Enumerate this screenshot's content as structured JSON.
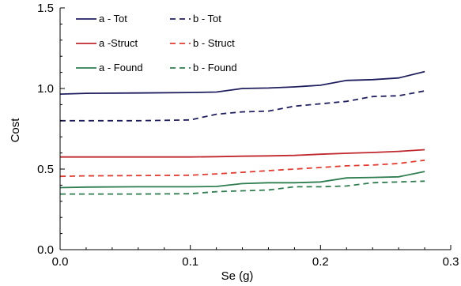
{
  "chart_data": {
    "type": "line",
    "title": "",
    "xlabel": "Se (g)",
    "ylabel": "Cost",
    "xlim": [
      0.0,
      0.3
    ],
    "ylim": [
      0.0,
      1.5
    ],
    "xticks": [
      "0.0",
      "0.1",
      "0.2",
      "0.3"
    ],
    "yticks": [
      "0.0",
      "0.5",
      "1.0",
      "1.5"
    ],
    "grid": false,
    "legend_position": "top-left",
    "x": [
      0.0,
      0.02,
      0.06,
      0.1,
      0.12,
      0.14,
      0.16,
      0.18,
      0.2,
      0.22,
      0.24,
      0.26,
      0.28
    ],
    "series": [
      {
        "name": "a - Tot",
        "color": "#1f1f5f",
        "dash": "solid",
        "values": [
          0.965,
          0.97,
          0.972,
          0.975,
          0.978,
          1.0,
          1.003,
          1.01,
          1.02,
          1.05,
          1.055,
          1.065,
          1.105
        ]
      },
      {
        "name": "b - Tot",
        "color": "#1f1f5f",
        "dash": "dashed",
        "values": [
          0.8,
          0.8,
          0.8,
          0.805,
          0.84,
          0.855,
          0.86,
          0.89,
          0.905,
          0.92,
          0.95,
          0.955,
          0.985
        ]
      },
      {
        "name": "a -Struct",
        "color": "#c0282d",
        "dash": "solid",
        "values": [
          0.575,
          0.575,
          0.575,
          0.575,
          0.577,
          0.58,
          0.582,
          0.585,
          0.592,
          0.598,
          0.603,
          0.61,
          0.62
        ]
      },
      {
        "name": "b - Struct",
        "color": "#e53a2f",
        "dash": "dashed",
        "values": [
          0.455,
          0.458,
          0.46,
          0.462,
          0.47,
          0.48,
          0.49,
          0.5,
          0.51,
          0.52,
          0.525,
          0.535,
          0.555
        ]
      },
      {
        "name": "a - Found",
        "color": "#2e7d4f",
        "dash": "solid",
        "values": [
          0.385,
          0.388,
          0.39,
          0.39,
          0.392,
          0.41,
          0.415,
          0.415,
          0.42,
          0.445,
          0.448,
          0.452,
          0.485
        ]
      },
      {
        "name": "b - Found",
        "color": "#2e7d4f",
        "dash": "dashed",
        "values": [
          0.345,
          0.345,
          0.345,
          0.347,
          0.36,
          0.365,
          0.37,
          0.39,
          0.39,
          0.395,
          0.415,
          0.42,
          0.425
        ]
      }
    ]
  }
}
